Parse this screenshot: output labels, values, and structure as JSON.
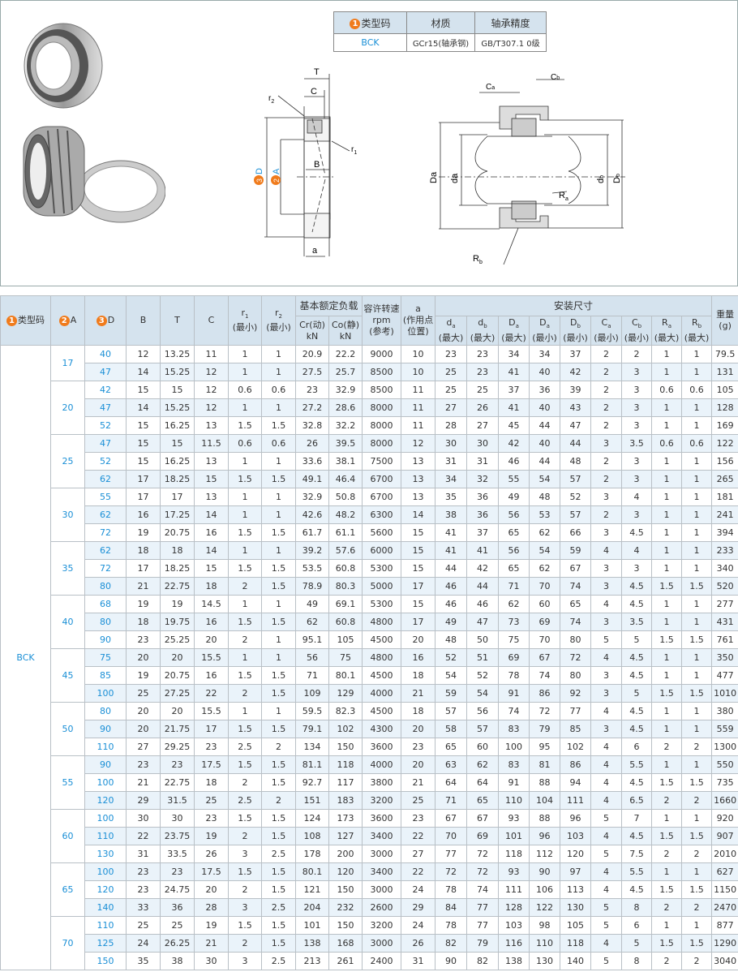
{
  "spec_table": {
    "headers": {
      "num": "1",
      "type": "类型码",
      "material": "材质",
      "precision": "轴承精度"
    },
    "values": {
      "type": "BCK",
      "material": "GCr15(轴承钢)",
      "precision": "GB/T307.1 0级"
    }
  },
  "diagram_labels": {
    "T": "T",
    "C": "C",
    "r2": "r",
    "r2_sub": "2",
    "r1": "r",
    "r1_sub": "1",
    "B": "B",
    "a": "a",
    "D_num": "3",
    "D": "D",
    "A_num": "2",
    "A": "A",
    "Ca": "C",
    "Ca_sub": "a",
    "Cb": "C",
    "Cb_sub": "b",
    "Da": "Da",
    "da": "da",
    "db": "d",
    "db_sub": "b",
    "Db": "D",
    "Db_sub": "b",
    "Ra": "R",
    "Ra_sub": "a",
    "Rb": "R",
    "Rb_sub": "b"
  },
  "table": {
    "headers": {
      "type_num": "1",
      "type": "类型码",
      "A_num": "2",
      "A": "A",
      "D_num": "3",
      "D": "D",
      "B": "B",
      "T": "T",
      "C": "C",
      "r1": "r",
      "r1_sub": "1",
      "r1_note": "(最小)",
      "r2": "r",
      "r2_sub": "2",
      "r2_note": "(最小)",
      "load": "基本额定负载",
      "Cr": "Cr(动)",
      "Cr_unit": "kN",
      "Co": "Co(静)",
      "Co_unit": "kN",
      "speed": "容许转速",
      "speed_unit": "rpm",
      "speed_note": "(参考)",
      "a": "a",
      "a_note1": "(作用点",
      "a_note2": "位置)",
      "install": "安装尺寸",
      "sub": [
        [
          "d",
          "a",
          "(最大)"
        ],
        [
          "d",
          "b",
          "(最大)"
        ],
        [
          "D",
          "a",
          "(最大)"
        ],
        [
          "D",
          "a",
          "(最小)"
        ],
        [
          "D",
          "b",
          "(最小)"
        ],
        [
          "C",
          "a",
          "(最小)"
        ],
        [
          "C",
          "b",
          "(最小)"
        ],
        [
          "R",
          "a",
          "(最大)"
        ],
        [
          "R",
          "b",
          "(最大)"
        ]
      ],
      "weight": "重量",
      "weight_unit": "(g)"
    },
    "type_value": "BCK",
    "groups": [
      {
        "A": "17",
        "rows": [
          [
            "40",
            "12",
            "13.25",
            "11",
            "1",
            "1",
            "20.9",
            "22.2",
            "9000",
            "10",
            "23",
            "23",
            "34",
            "34",
            "37",
            "2",
            "2",
            "1",
            "1",
            "79.5"
          ],
          [
            "47",
            "14",
            "15.25",
            "12",
            "1",
            "1",
            "27.5",
            "25.7",
            "8500",
            "10",
            "25",
            "23",
            "41",
            "40",
            "42",
            "2",
            "3",
            "1",
            "1",
            "131"
          ]
        ]
      },
      {
        "A": "20",
        "rows": [
          [
            "42",
            "15",
            "15",
            "12",
            "0.6",
            "0.6",
            "23",
            "32.9",
            "8500",
            "11",
            "25",
            "25",
            "37",
            "36",
            "39",
            "2",
            "3",
            "0.6",
            "0.6",
            "105"
          ],
          [
            "47",
            "14",
            "15.25",
            "12",
            "1",
            "1",
            "27.2",
            "28.6",
            "8000",
            "11",
            "27",
            "26",
            "41",
            "40",
            "43",
            "2",
            "3",
            "1",
            "1",
            "128"
          ],
          [
            "52",
            "15",
            "16.25",
            "13",
            "1.5",
            "1.5",
            "32.8",
            "32.2",
            "8000",
            "11",
            "28",
            "27",
            "45",
            "44",
            "47",
            "2",
            "3",
            "1",
            "1",
            "169"
          ]
        ]
      },
      {
        "A": "25",
        "rows": [
          [
            "47",
            "15",
            "15",
            "11.5",
            "0.6",
            "0.6",
            "26",
            "39.5",
            "8000",
            "12",
            "30",
            "30",
            "42",
            "40",
            "44",
            "3",
            "3.5",
            "0.6",
            "0.6",
            "122"
          ],
          [
            "52",
            "15",
            "16.25",
            "13",
            "1",
            "1",
            "33.6",
            "38.1",
            "7500",
            "13",
            "31",
            "31",
            "46",
            "44",
            "48",
            "2",
            "3",
            "1",
            "1",
            "156"
          ],
          [
            "62",
            "17",
            "18.25",
            "15",
            "1.5",
            "1.5",
            "49.1",
            "46.4",
            "6700",
            "13",
            "34",
            "32",
            "55",
            "54",
            "57",
            "2",
            "3",
            "1",
            "1",
            "265"
          ]
        ]
      },
      {
        "A": "30",
        "rows": [
          [
            "55",
            "17",
            "17",
            "13",
            "1",
            "1",
            "32.9",
            "50.8",
            "6700",
            "13",
            "35",
            "36",
            "49",
            "48",
            "52",
            "3",
            "4",
            "1",
            "1",
            "181"
          ],
          [
            "62",
            "16",
            "17.25",
            "14",
            "1",
            "1",
            "42.6",
            "48.2",
            "6300",
            "14",
            "38",
            "36",
            "56",
            "53",
            "57",
            "2",
            "3",
            "1",
            "1",
            "241"
          ],
          [
            "72",
            "19",
            "20.75",
            "16",
            "1.5",
            "1.5",
            "61.7",
            "61.1",
            "5600",
            "15",
            "41",
            "37",
            "65",
            "62",
            "66",
            "3",
            "4.5",
            "1",
            "1",
            "394"
          ]
        ]
      },
      {
        "A": "35",
        "rows": [
          [
            "62",
            "18",
            "18",
            "14",
            "1",
            "1",
            "39.2",
            "57.6",
            "6000",
            "15",
            "41",
            "41",
            "56",
            "54",
            "59",
            "4",
            "4",
            "1",
            "1",
            "233"
          ],
          [
            "72",
            "17",
            "18.25",
            "15",
            "1.5",
            "1.5",
            "53.5",
            "60.8",
            "5300",
            "15",
            "44",
            "42",
            "65",
            "62",
            "67",
            "3",
            "3",
            "1",
            "1",
            "340"
          ],
          [
            "80",
            "21",
            "22.75",
            "18",
            "2",
            "1.5",
            "78.9",
            "80.3",
            "5000",
            "17",
            "46",
            "44",
            "71",
            "70",
            "74",
            "3",
            "4.5",
            "1.5",
            "1.5",
            "520"
          ]
        ]
      },
      {
        "A": "40",
        "rows": [
          [
            "68",
            "19",
            "19",
            "14.5",
            "1",
            "1",
            "49",
            "69.1",
            "5300",
            "15",
            "46",
            "46",
            "62",
            "60",
            "65",
            "4",
            "4.5",
            "1",
            "1",
            "277"
          ],
          [
            "80",
            "18",
            "19.75",
            "16",
            "1.5",
            "1.5",
            "62",
            "60.8",
            "4800",
            "17",
            "49",
            "47",
            "73",
            "69",
            "74",
            "3",
            "3.5",
            "1",
            "1",
            "431"
          ],
          [
            "90",
            "23",
            "25.25",
            "20",
            "2",
            "1",
            "95.1",
            "105",
            "4500",
            "20",
            "48",
            "50",
            "75",
            "70",
            "80",
            "5",
            "5",
            "1.5",
            "1.5",
            "761"
          ]
        ]
      },
      {
        "A": "45",
        "rows": [
          [
            "75",
            "20",
            "20",
            "15.5",
            "1",
            "1",
            "56",
            "75",
            "4800",
            "16",
            "52",
            "51",
            "69",
            "67",
            "72",
            "4",
            "4.5",
            "1",
            "1",
            "350"
          ],
          [
            "85",
            "19",
            "20.75",
            "16",
            "1.5",
            "1.5",
            "71",
            "80.1",
            "4500",
            "18",
            "54",
            "52",
            "78",
            "74",
            "80",
            "3",
            "4.5",
            "1",
            "1",
            "477"
          ],
          [
            "100",
            "25",
            "27.25",
            "22",
            "2",
            "1.5",
            "109",
            "129",
            "4000",
            "21",
            "59",
            "54",
            "91",
            "86",
            "92",
            "3",
            "5",
            "1.5",
            "1.5",
            "1010"
          ]
        ]
      },
      {
        "A": "50",
        "rows": [
          [
            "80",
            "20",
            "20",
            "15.5",
            "1",
            "1",
            "59.5",
            "82.3",
            "4500",
            "18",
            "57",
            "56",
            "74",
            "72",
            "77",
            "4",
            "4.5",
            "1",
            "1",
            "380"
          ],
          [
            "90",
            "20",
            "21.75",
            "17",
            "1.5",
            "1.5",
            "79.1",
            "102",
            "4300",
            "20",
            "58",
            "57",
            "83",
            "79",
            "85",
            "3",
            "4.5",
            "1",
            "1",
            "559"
          ],
          [
            "110",
            "27",
            "29.25",
            "23",
            "2.5",
            "2",
            "134",
            "150",
            "3600",
            "23",
            "65",
            "60",
            "100",
            "95",
            "102",
            "4",
            "6",
            "2",
            "2",
            "1300"
          ]
        ]
      },
      {
        "A": "55",
        "rows": [
          [
            "90",
            "23",
            "23",
            "17.5",
            "1.5",
            "1.5",
            "81.1",
            "118",
            "4000",
            "20",
            "63",
            "62",
            "83",
            "81",
            "86",
            "4",
            "5.5",
            "1",
            "1",
            "550"
          ],
          [
            "100",
            "21",
            "22.75",
            "18",
            "2",
            "1.5",
            "92.7",
            "117",
            "3800",
            "21",
            "64",
            "64",
            "91",
            "88",
            "94",
            "4",
            "4.5",
            "1.5",
            "1.5",
            "735"
          ],
          [
            "120",
            "29",
            "31.5",
            "25",
            "2.5",
            "2",
            "151",
            "183",
            "3200",
            "25",
            "71",
            "65",
            "110",
            "104",
            "111",
            "4",
            "6.5",
            "2",
            "2",
            "1660"
          ]
        ]
      },
      {
        "A": "60",
        "rows": [
          [
            "100",
            "30",
            "30",
            "23",
            "1.5",
            "1.5",
            "124",
            "173",
            "3600",
            "23",
            "67",
            "67",
            "93",
            "88",
            "96",
            "5",
            "7",
            "1",
            "1",
            "920"
          ],
          [
            "110",
            "22",
            "23.75",
            "19",
            "2",
            "1.5",
            "108",
            "127",
            "3400",
            "22",
            "70",
            "69",
            "101",
            "96",
            "103",
            "4",
            "4.5",
            "1.5",
            "1.5",
            "907"
          ],
          [
            "130",
            "31",
            "33.5",
            "26",
            "3",
            "2.5",
            "178",
            "200",
            "3000",
            "27",
            "77",
            "72",
            "118",
            "112",
            "120",
            "5",
            "7.5",
            "2",
            "2",
            "2010"
          ]
        ]
      },
      {
        "A": "65",
        "rows": [
          [
            "100",
            "23",
            "23",
            "17.5",
            "1.5",
            "1.5",
            "80.1",
            "120",
            "3400",
            "22",
            "72",
            "72",
            "93",
            "90",
            "97",
            "4",
            "5.5",
            "1",
            "1",
            "627"
          ],
          [
            "120",
            "23",
            "24.75",
            "20",
            "2",
            "1.5",
            "121",
            "150",
            "3000",
            "24",
            "78",
            "74",
            "111",
            "106",
            "113",
            "4",
            "4.5",
            "1.5",
            "1.5",
            "1150"
          ],
          [
            "140",
            "33",
            "36",
            "28",
            "3",
            "2.5",
            "204",
            "232",
            "2600",
            "29",
            "84",
            "77",
            "128",
            "122",
            "130",
            "5",
            "8",
            "2",
            "2",
            "2470"
          ]
        ]
      },
      {
        "A": "70",
        "rows": [
          [
            "110",
            "25",
            "25",
            "19",
            "1.5",
            "1.5",
            "101",
            "150",
            "3200",
            "24",
            "78",
            "77",
            "103",
            "98",
            "105",
            "5",
            "6",
            "1",
            "1",
            "877"
          ],
          [
            "125",
            "24",
            "26.25",
            "21",
            "2",
            "1.5",
            "138",
            "168",
            "3000",
            "26",
            "82",
            "79",
            "116",
            "110",
            "118",
            "4",
            "5",
            "1.5",
            "1.5",
            "1290"
          ],
          [
            "150",
            "35",
            "38",
            "30",
            "3",
            "2.5",
            "213",
            "261",
            "2400",
            "31",
            "90",
            "82",
            "138",
            "130",
            "140",
            "5",
            "8",
            "2",
            "2",
            "3040"
          ]
        ]
      }
    ]
  },
  "colors": {
    "accent_orange": "#f07b1c",
    "link_blue": "#1a8fd6",
    "header_bg": "#d5e3ee",
    "stripe_bg": "#eaf3fa"
  }
}
